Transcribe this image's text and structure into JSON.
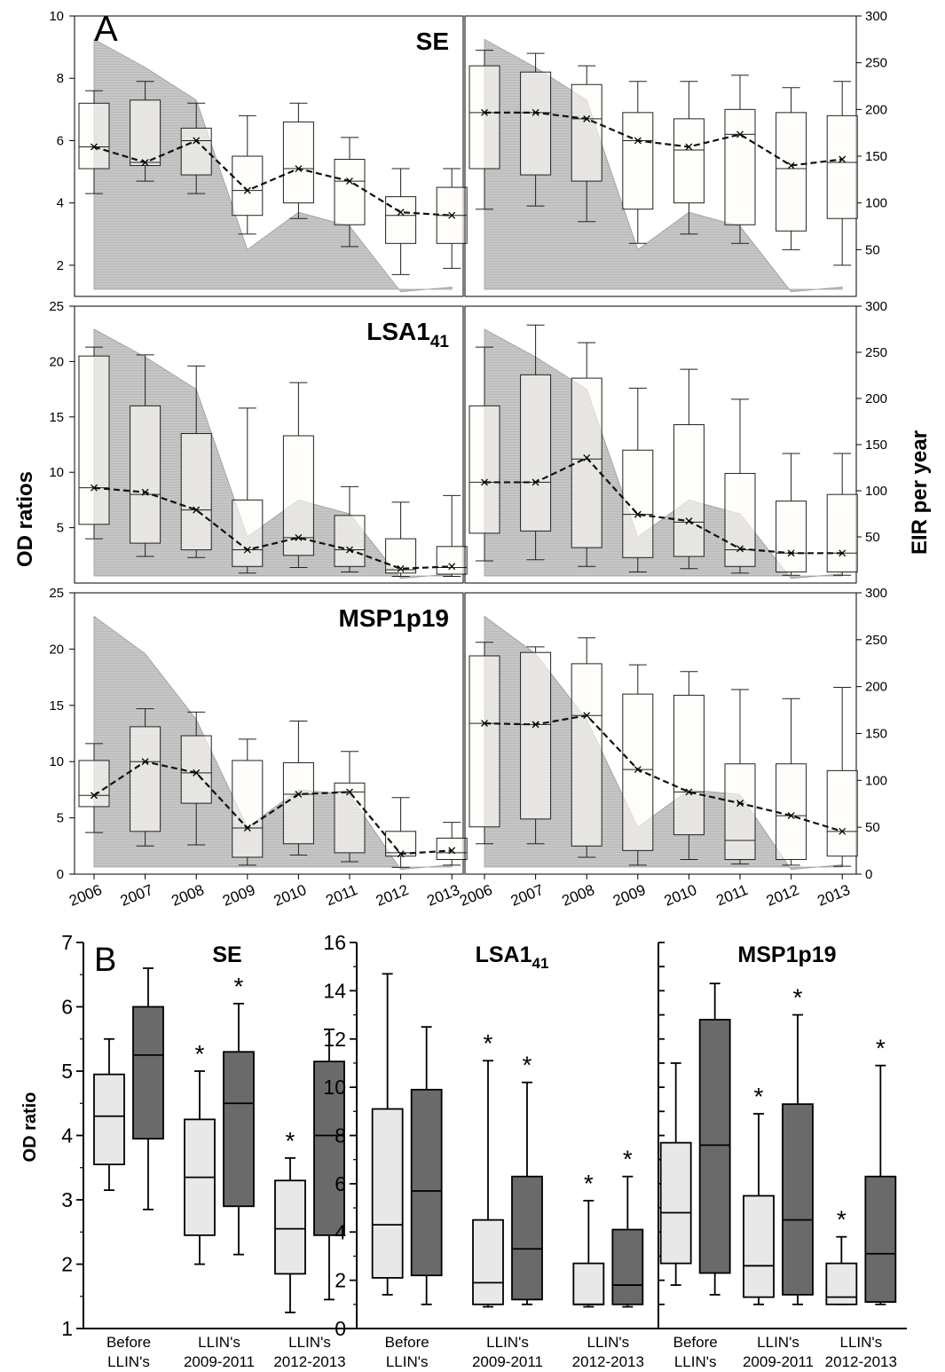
{
  "figure": {
    "panel_a_label": "A",
    "panel_b_label": "B",
    "panel_a_ylabel": "OD ratios",
    "panel_a_y2label": "EIR per year",
    "panel_b_ylabel": "OD ratio"
  },
  "colors": {
    "eir_area": "#c8c8c8",
    "box_fill": "#fffcf6",
    "mean_line": "#111111",
    "b_light_box": "#e8e8e8",
    "b_dark_box": "#6a6a6a"
  },
  "chart_data": [
    {
      "panel": "A",
      "type": "boxplot",
      "subplot": "SE-left",
      "title": "SE",
      "x": [
        "2006",
        "2007",
        "2008",
        "2009",
        "2010",
        "2011",
        "2012",
        "2013"
      ],
      "ylim": [
        1,
        10
      ],
      "yticks": [
        "2",
        "4",
        "6",
        "8",
        "10"
      ],
      "boxes": [
        {
          "whislo": 4.3,
          "q1": 5.1,
          "med": 5.8,
          "q3": 7.2,
          "whishi": 7.6,
          "mean": 5.8
        },
        {
          "whislo": 4.7,
          "q1": 5.2,
          "med": 5.3,
          "q3": 7.3,
          "whishi": 7.9,
          "mean": 5.3
        },
        {
          "whislo": 4.3,
          "q1": 4.9,
          "med": 6.0,
          "q3": 6.4,
          "whishi": 7.2,
          "mean": 6.0
        },
        {
          "whislo": 3.0,
          "q1": 3.6,
          "med": 4.4,
          "q3": 5.5,
          "whishi": 6.8,
          "mean": 4.4
        },
        {
          "whislo": 3.5,
          "q1": 4.0,
          "med": 5.1,
          "q3": 6.6,
          "whishi": 7.2,
          "mean": 5.1
        },
        {
          "whislo": 2.6,
          "q1": 3.3,
          "med": 4.7,
          "q3": 5.4,
          "whishi": 6.1,
          "mean": 4.7
        },
        {
          "whislo": 1.7,
          "q1": 2.7,
          "med": 3.6,
          "q3": 4.2,
          "whishi": 5.1,
          "mean": 3.7
        },
        {
          "whislo": 1.9,
          "q1": 2.7,
          "med": 3.6,
          "q3": 4.5,
          "whishi": 5.1,
          "mean": 3.6
        }
      ],
      "eir": [
        275,
        245,
        210,
        50,
        90,
        75,
        5,
        10
      ],
      "y2lim": [
        0,
        300
      ]
    },
    {
      "panel": "A",
      "type": "boxplot",
      "subplot": "SE-right",
      "x": [
        "2006",
        "2007",
        "2008",
        "2009",
        "2010",
        "2011",
        "2012",
        "2013"
      ],
      "ylim": [
        1,
        10
      ],
      "y2ticks": [
        "50",
        "100",
        "150",
        "200",
        "250",
        "300"
      ],
      "boxes": [
        {
          "whislo": 3.8,
          "q1": 5.1,
          "med": 6.9,
          "q3": 8.4,
          "whishi": 8.9,
          "mean": 6.9
        },
        {
          "whislo": 3.9,
          "q1": 4.9,
          "med": 6.9,
          "q3": 8.2,
          "whishi": 8.8,
          "mean": 6.9
        },
        {
          "whislo": 3.4,
          "q1": 4.7,
          "med": 6.7,
          "q3": 7.8,
          "whishi": 8.4,
          "mean": 6.7
        },
        {
          "whislo": 2.7,
          "q1": 3.8,
          "med": 6.0,
          "q3": 6.9,
          "whishi": 7.9,
          "mean": 6.0
        },
        {
          "whislo": 3.0,
          "q1": 4.0,
          "med": 5.7,
          "q3": 6.7,
          "whishi": 7.9,
          "mean": 5.8
        },
        {
          "whislo": 2.7,
          "q1": 3.3,
          "med": 6.2,
          "q3": 7.0,
          "whishi": 8.1,
          "mean": 6.2
        },
        {
          "whislo": 2.5,
          "q1": 3.1,
          "med": 5.1,
          "q3": 6.9,
          "whishi": 7.7,
          "mean": 5.2
        },
        {
          "whislo": 2.0,
          "q1": 3.5,
          "med": 5.3,
          "q3": 6.8,
          "whishi": 7.9,
          "mean": 5.4
        }
      ],
      "eir": [
        275,
        245,
        210,
        50,
        90,
        75,
        5,
        10
      ],
      "y2lim": [
        0,
        300
      ]
    },
    {
      "panel": "A",
      "type": "boxplot",
      "subplot": "LSA1-left",
      "title": "LSA1",
      "title_sub": "41",
      "x": [
        "2006",
        "2007",
        "2008",
        "2009",
        "2010",
        "2011",
        "2012",
        "2013"
      ],
      "ylim": [
        0,
        25
      ],
      "yticks": [
        "5",
        "10",
        "15",
        "20",
        "25"
      ],
      "boxes": [
        {
          "whislo": 4.0,
          "q1": 5.3,
          "med": 8.6,
          "q3": 20.5,
          "whishi": 21.3,
          "mean": 8.6
        },
        {
          "whislo": 2.4,
          "q1": 3.6,
          "med": 8.0,
          "q3": 16.0,
          "whishi": 20.6,
          "mean": 8.2
        },
        {
          "whislo": 2.3,
          "q1": 3.0,
          "med": 6.6,
          "q3": 13.5,
          "whishi": 19.6,
          "mean": 6.6
        },
        {
          "whislo": 0.9,
          "q1": 1.5,
          "med": 3.0,
          "q3": 7.5,
          "whishi": 15.8,
          "mean": 3.0
        },
        {
          "whislo": 1.4,
          "q1": 2.5,
          "med": 4.1,
          "q3": 13.3,
          "whishi": 18.1,
          "mean": 4.1
        },
        {
          "whislo": 1.0,
          "q1": 1.5,
          "med": 3.0,
          "q3": 6.1,
          "whishi": 8.7,
          "mean": 3.0
        },
        {
          "whislo": 0.6,
          "q1": 0.9,
          "med": 1.2,
          "q3": 4.0,
          "whishi": 7.3,
          "mean": 1.3
        },
        {
          "whislo": 0.6,
          "q1": 0.8,
          "med": 1.4,
          "q3": 3.3,
          "whishi": 7.9,
          "mean": 1.5
        }
      ],
      "eir": [
        275,
        245,
        210,
        50,
        90,
        75,
        5,
        10
      ],
      "y2lim": [
        0,
        300
      ]
    },
    {
      "panel": "A",
      "type": "boxplot",
      "subplot": "LSA1-right",
      "x": [
        "2006",
        "2007",
        "2008",
        "2009",
        "2010",
        "2011",
        "2012",
        "2013"
      ],
      "ylim": [
        0,
        25
      ],
      "y2ticks": [
        "50",
        "100",
        "150",
        "200",
        "250",
        "300"
      ],
      "boxes": [
        {
          "whislo": 2.0,
          "q1": 4.5,
          "med": 9.1,
          "q3": 16.0,
          "whishi": 21.3,
          "mean": 9.1
        },
        {
          "whislo": 2.1,
          "q1": 4.7,
          "med": 9.1,
          "q3": 18.8,
          "whishi": 23.3,
          "mean": 9.1
        },
        {
          "whislo": 1.5,
          "q1": 3.2,
          "med": 11.2,
          "q3": 18.5,
          "whishi": 21.7,
          "mean": 11.3
        },
        {
          "whislo": 1.0,
          "q1": 2.3,
          "med": 6.2,
          "q3": 12.0,
          "whishi": 17.6,
          "mean": 6.2
        },
        {
          "whislo": 1.3,
          "q1": 2.4,
          "med": 5.5,
          "q3": 14.3,
          "whishi": 19.3,
          "mean": 5.6
        },
        {
          "whislo": 0.9,
          "q1": 1.5,
          "med": 3.0,
          "q3": 9.9,
          "whishi": 16.6,
          "mean": 3.1
        },
        {
          "whislo": 0.7,
          "q1": 1.0,
          "med": 2.7,
          "q3": 7.4,
          "whishi": 11.7,
          "mean": 2.7
        },
        {
          "whislo": 0.7,
          "q1": 1.0,
          "med": 2.7,
          "q3": 8.0,
          "whishi": 11.7,
          "mean": 2.7
        }
      ],
      "eir": [
        275,
        245,
        210,
        50,
        90,
        75,
        5,
        10
      ],
      "y2lim": [
        0,
        300
      ]
    },
    {
      "panel": "A",
      "type": "boxplot",
      "subplot": "MSP1p19-left",
      "title": "MSP1p19",
      "x": [
        "2006",
        "2007",
        "2008",
        "2009",
        "2010",
        "2011",
        "2012",
        "2013"
      ],
      "ylim": [
        0,
        25
      ],
      "yticks": [
        "0",
        "5",
        "10",
        "15",
        "20",
        "25"
      ],
      "boxes": [
        {
          "whislo": 3.7,
          "q1": 6.0,
          "med": 7.0,
          "q3": 10.1,
          "whishi": 11.6,
          "mean": 7.0
        },
        {
          "whislo": 2.5,
          "q1": 3.8,
          "med": 10.0,
          "q3": 13.1,
          "whishi": 14.7,
          "mean": 10.0
        },
        {
          "whislo": 2.6,
          "q1": 6.3,
          "med": 9.0,
          "q3": 12.3,
          "whishi": 14.4,
          "mean": 9.0
        },
        {
          "whislo": 0.8,
          "q1": 1.5,
          "med": 4.1,
          "q3": 10.1,
          "whishi": 12.0,
          "mean": 4.1
        },
        {
          "whislo": 1.7,
          "q1": 2.7,
          "med": 7.1,
          "q3": 9.9,
          "whishi": 13.6,
          "mean": 7.1
        },
        {
          "whislo": 1.1,
          "q1": 1.9,
          "med": 7.3,
          "q3": 8.1,
          "whishi": 10.9,
          "mean": 7.3
        },
        {
          "whislo": 0.6,
          "q1": 1.6,
          "med": 1.9,
          "q3": 3.8,
          "whishi": 6.8,
          "mean": 1.8
        },
        {
          "whislo": 0.8,
          "q1": 1.3,
          "med": 1.9,
          "q3": 3.2,
          "whishi": 4.6,
          "mean": 2.1
        }
      ],
      "eir": [
        275,
        235,
        165,
        50,
        90,
        85,
        5,
        10
      ],
      "y2lim": [
        0,
        300
      ]
    },
    {
      "panel": "A",
      "type": "boxplot",
      "subplot": "MSP1p19-right",
      "x": [
        "2006",
        "2007",
        "2008",
        "2009",
        "2010",
        "2011",
        "2012",
        "2013"
      ],
      "ylim": [
        0,
        25
      ],
      "y2ticks": [
        "0",
        "50",
        "100",
        "150",
        "200",
        "250",
        "300"
      ],
      "boxes": [
        {
          "whislo": 2.7,
          "q1": 4.2,
          "med": 13.4,
          "q3": 19.4,
          "whishi": 20.6,
          "mean": 13.4
        },
        {
          "whislo": 2.7,
          "q1": 4.9,
          "med": 13.3,
          "q3": 19.7,
          "whishi": 20.2,
          "mean": 13.3
        },
        {
          "whislo": 1.5,
          "q1": 2.5,
          "med": 14.1,
          "q3": 18.7,
          "whishi": 21.0,
          "mean": 14.1
        },
        {
          "whislo": 0.8,
          "q1": 2.1,
          "med": 9.3,
          "q3": 16.0,
          "whishi": 18.6,
          "mean": 9.3
        },
        {
          "whislo": 1.3,
          "q1": 3.5,
          "med": 7.3,
          "q3": 15.9,
          "whishi": 18.0,
          "mean": 7.3
        },
        {
          "whislo": 0.9,
          "q1": 1.3,
          "med": 3.0,
          "q3": 9.8,
          "whishi": 16.4,
          "mean": 6.3
        },
        {
          "whislo": 0.8,
          "q1": 1.3,
          "med": 5.2,
          "q3": 9.8,
          "whishi": 15.6,
          "mean": 5.2
        },
        {
          "whislo": 0.7,
          "q1": 1.6,
          "med": 3.8,
          "q3": 9.2,
          "whishi": 16.6,
          "mean": 3.8
        }
      ],
      "eir": [
        275,
        235,
        165,
        50,
        90,
        85,
        5,
        10
      ],
      "y2lim": [
        0,
        300
      ]
    },
    {
      "panel": "B",
      "type": "boxplot",
      "subplot": "B-SE",
      "title": "SE",
      "groups": [
        [
          "Before",
          "LLIN's"
        ],
        [
          "LLIN's",
          "2009-2011"
        ],
        [
          "LLIN's",
          "2012-2013"
        ]
      ],
      "ylim": [
        1,
        7
      ],
      "yticks": [
        "1",
        "2",
        "3",
        "4",
        "5",
        "6",
        "7"
      ],
      "series": [
        {
          "shade": "light",
          "boxes": [
            {
              "whislo": 3.15,
              "q1": 3.55,
              "med": 4.3,
              "q3": 4.95,
              "whishi": 5.5
            },
            {
              "whislo": 2.0,
              "q1": 2.45,
              "med": 3.35,
              "q3": 4.25,
              "whishi": 5.0
            },
            {
              "whislo": 1.25,
              "q1": 1.85,
              "med": 2.55,
              "q3": 3.3,
              "whishi": 3.65
            }
          ]
        },
        {
          "shade": "dark",
          "boxes": [
            {
              "whislo": 2.85,
              "q1": 3.95,
              "med": 5.25,
              "q3": 6.0,
              "whishi": 6.6
            },
            {
              "whislo": 2.15,
              "q1": 2.9,
              "med": 4.5,
              "q3": 5.3,
              "whishi": 6.05
            },
            {
              "whislo": 1.45,
              "q1": 2.45,
              "med": 4.0,
              "q3": 5.15,
              "whishi": 5.65
            }
          ]
        }
      ],
      "asterisks": [
        {
          "group": 1,
          "series": 0
        },
        {
          "group": 1,
          "series": 1
        },
        {
          "group": 2,
          "series": 0
        }
      ]
    },
    {
      "panel": "B",
      "type": "boxplot",
      "subplot": "B-LSA1",
      "title": "LSA1",
      "title_sub": "41",
      "groups": [
        [
          "Before",
          "LLIN's"
        ],
        [
          "LLIN's",
          "2009-2011"
        ],
        [
          "LLIN's",
          "2012-2013"
        ]
      ],
      "ylim": [
        0,
        16
      ],
      "yticks": [
        "0",
        "2",
        "4",
        "6",
        "8",
        "10",
        "12",
        "14",
        "16"
      ],
      "series": [
        {
          "shade": "light",
          "boxes": [
            {
              "whislo": 1.4,
              "q1": 2.1,
              "med": 4.3,
              "q3": 9.1,
              "whishi": 14.7
            },
            {
              "whislo": 0.9,
              "q1": 1.0,
              "med": 1.9,
              "q3": 4.5,
              "whishi": 11.1
            },
            {
              "whislo": 0.9,
              "q1": 1.0,
              "med": 1.0,
              "q3": 2.7,
              "whishi": 5.3
            }
          ]
        },
        {
          "shade": "dark",
          "boxes": [
            {
              "whislo": 1.0,
              "q1": 2.2,
              "med": 5.7,
              "q3": 9.9,
              "whishi": 12.5
            },
            {
              "whislo": 1.0,
              "q1": 1.2,
              "med": 3.3,
              "q3": 6.3,
              "whishi": 10.2
            },
            {
              "whislo": 0.9,
              "q1": 1.0,
              "med": 1.8,
              "q3": 4.1,
              "whishi": 6.3
            }
          ]
        }
      ],
      "asterisks": [
        {
          "group": 1,
          "series": 0
        },
        {
          "group": 1,
          "series": 1
        },
        {
          "group": 2,
          "series": 0
        },
        {
          "group": 2,
          "series": 1
        }
      ]
    },
    {
      "panel": "B",
      "type": "boxplot",
      "subplot": "B-MSP1p19",
      "title": "MSP1p19",
      "groups": [
        [
          "Before",
          "LLIN's"
        ],
        [
          "LLIN's",
          "2009-2011"
        ],
        [
          "LLIN's",
          "2012-2013"
        ]
      ],
      "ylim": [
        0,
        16
      ],
      "series": [
        {
          "shade": "light",
          "boxes": [
            {
              "whislo": 1.8,
              "q1": 2.7,
              "med": 4.8,
              "q3": 7.7,
              "whishi": 11.0
            },
            {
              "whislo": 1.0,
              "q1": 1.3,
              "med": 2.6,
              "q3": 5.5,
              "whishi": 8.9
            },
            {
              "whislo": 1.0,
              "q1": 1.0,
              "med": 1.3,
              "q3": 2.7,
              "whishi": 3.8
            }
          ]
        },
        {
          "shade": "dark",
          "boxes": [
            {
              "whislo": 1.4,
              "q1": 2.3,
              "med": 7.6,
              "q3": 12.8,
              "whishi": 14.3
            },
            {
              "whislo": 1.0,
              "q1": 1.4,
              "med": 4.5,
              "q3": 9.3,
              "whishi": 13.0
            },
            {
              "whislo": 1.0,
              "q1": 1.1,
              "med": 3.1,
              "q3": 6.3,
              "whishi": 10.9
            }
          ]
        }
      ],
      "asterisks": [
        {
          "group": 1,
          "series": 0
        },
        {
          "group": 1,
          "series": 1
        },
        {
          "group": 2,
          "series": 0
        },
        {
          "group": 2,
          "series": 1
        }
      ]
    }
  ]
}
